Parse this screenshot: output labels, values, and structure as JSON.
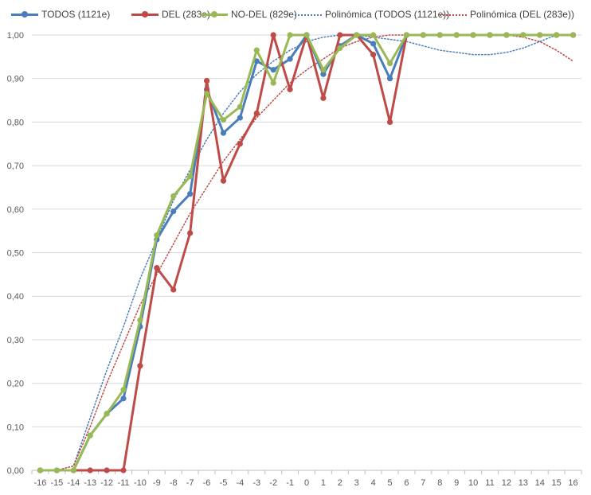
{
  "chart_data": {
    "type": "line",
    "title": "",
    "xlabel": "",
    "ylabel": "",
    "categories": [
      "-16",
      "-15",
      "-14",
      "-13",
      "-12",
      "-11",
      "-10",
      "-9",
      "-8",
      "-7",
      "-6",
      "-5",
      "-4",
      "-3",
      "-2",
      "-1",
      "0",
      "1",
      "2",
      "3",
      "4",
      "5",
      "6",
      "7",
      "8",
      "9",
      "10",
      "11",
      "12",
      "13",
      "14",
      "15",
      "16"
    ],
    "ylim": [
      0,
      1
    ],
    "yticks": [
      "0,00",
      "0,10",
      "0,20",
      "0,30",
      "0,40",
      "0,50",
      "0,60",
      "0,70",
      "0,80",
      "0,90",
      "1,00"
    ],
    "grid": "horizontal",
    "legend_position": "top",
    "series": [
      {
        "name": "TODOS (1121e)",
        "color": "#4a7ebb",
        "style": "line-markers",
        "values": [
          0,
          0,
          0,
          0.08,
          0.13,
          0.165,
          0.33,
          0.53,
          0.595,
          0.635,
          0.875,
          0.775,
          0.81,
          0.94,
          0.92,
          0.945,
          1.0,
          0.91,
          0.975,
          1.0,
          0.98,
          0.9,
          1.0,
          1.0,
          1.0,
          1.0,
          1.0,
          1.0,
          1.0,
          1.0,
          1.0,
          1.0,
          1.0
        ]
      },
      {
        "name": "DEL (283e)",
        "color": "#be4b48",
        "style": "line-markers",
        "values": [
          0,
          0,
          0,
          0,
          0,
          0,
          0.24,
          0.465,
          0.415,
          0.545,
          0.895,
          0.665,
          0.75,
          0.82,
          1.0,
          0.875,
          1.0,
          0.855,
          1.0,
          1.0,
          0.955,
          0.8,
          1.0,
          1.0,
          1.0,
          1.0,
          1.0,
          1.0,
          1.0,
          1.0,
          1.0,
          1.0,
          1.0
        ]
      },
      {
        "name": "NO-DEL (829e)",
        "color": "#98b954",
        "style": "line-markers",
        "values": [
          0,
          0,
          0,
          0.08,
          0.13,
          0.185,
          0.345,
          0.54,
          0.63,
          0.675,
          0.865,
          0.805,
          0.835,
          0.965,
          0.89,
          1.0,
          1.0,
          0.92,
          0.97,
          1.0,
          1.0,
          0.935,
          1.0,
          1.0,
          1.0,
          1.0,
          1.0,
          1.0,
          1.0,
          1.0,
          1.0,
          1.0,
          1.0
        ]
      },
      {
        "name": "Polinómica (TODOS (1121e))",
        "color": "#4a7ebb",
        "style": "dotted-trend",
        "values": [
          -0.01,
          -0.01,
          0.01,
          0.12,
          0.23,
          0.33,
          0.44,
          0.53,
          0.62,
          0.69,
          0.76,
          0.82,
          0.87,
          0.91,
          0.94,
          0.965,
          0.985,
          0.995,
          1.0,
          1.0,
          0.995,
          0.99,
          0.985,
          0.975,
          0.965,
          0.96,
          0.955,
          0.955,
          0.96,
          0.97,
          0.985,
          1.0,
          1.0
        ]
      },
      {
        "name": "Polinómica (DEL (283e))",
        "color": "#be4b48",
        "style": "dotted-trend",
        "values": [
          -0.01,
          -0.01,
          0.01,
          0.1,
          0.2,
          0.29,
          0.38,
          0.45,
          0.52,
          0.59,
          0.65,
          0.71,
          0.76,
          0.81,
          0.85,
          0.89,
          0.92,
          0.945,
          0.97,
          0.985,
          0.995,
          1.0,
          1.0,
          1.0,
          1.0,
          1.0,
          1.0,
          1.0,
          1.0,
          0.995,
          0.985,
          0.965,
          0.94
        ]
      }
    ]
  }
}
